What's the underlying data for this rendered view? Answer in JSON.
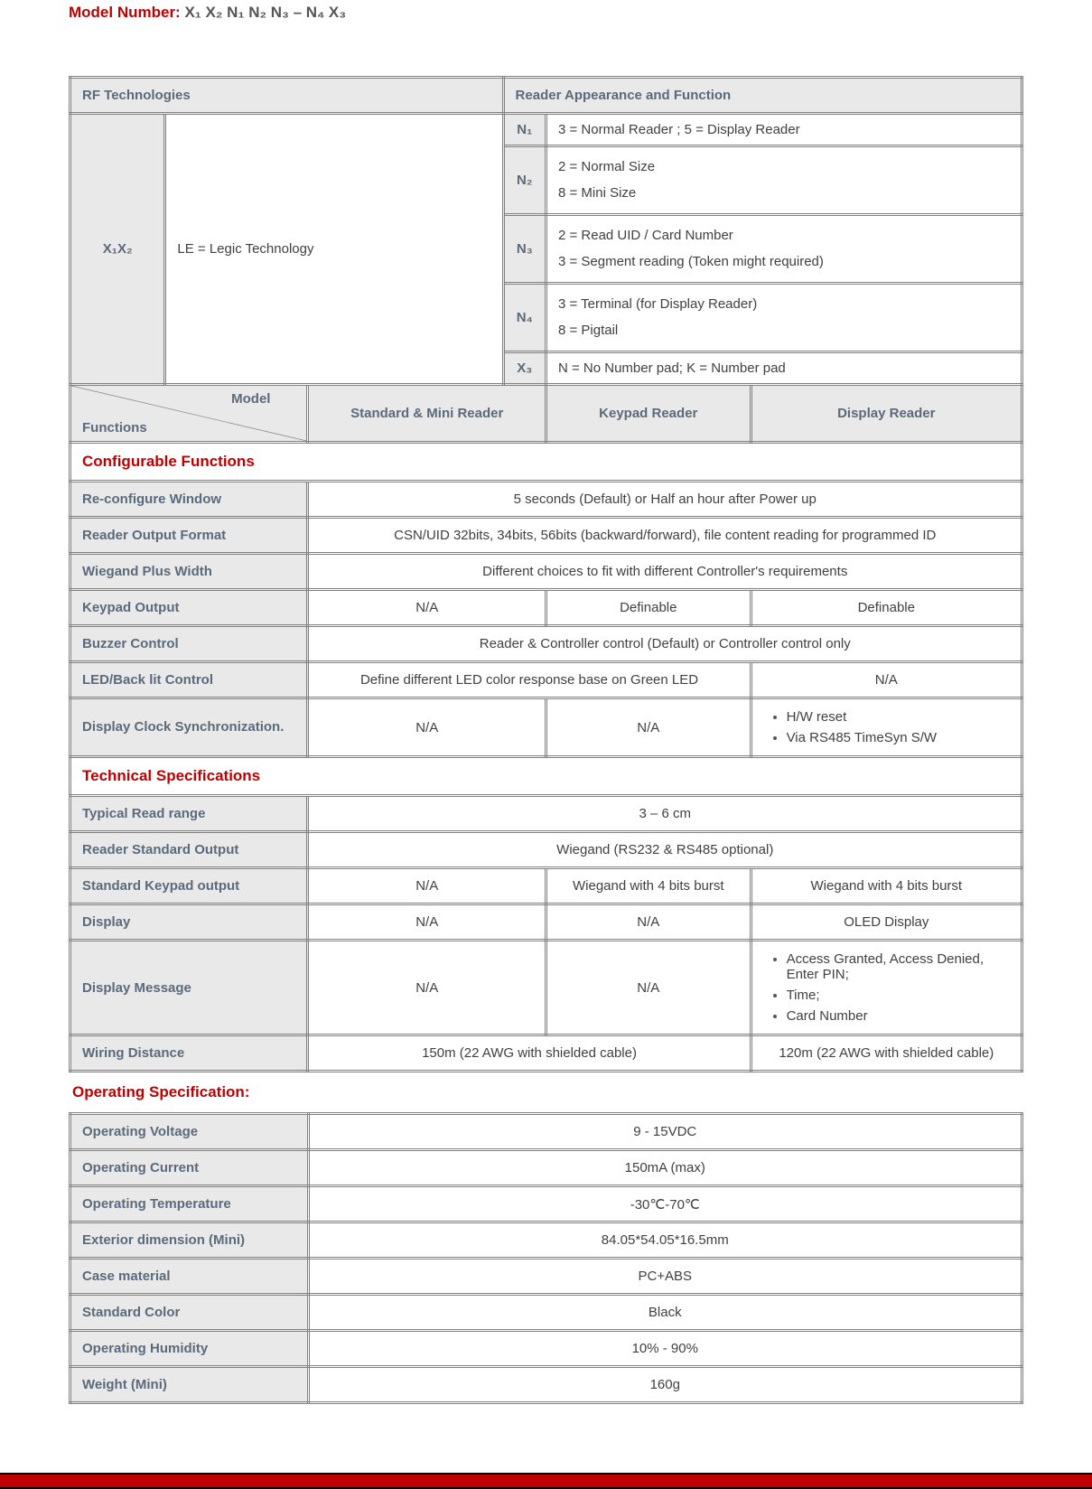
{
  "title_label": "Model Number:",
  "title_pattern": "X₁ X₂ N₁ N₂ N₃ – N₄ X₃",
  "headers": {
    "rf_tech": "RF Technologies",
    "reader_app": "Reader Appearance and Function"
  },
  "rf_key": "X₁X₂",
  "rf_val": "LE = Legic Technology",
  "appearance": [
    {
      "k": "N₁",
      "v": "3 = Normal Reader ; 5 = Display Reader"
    },
    {
      "k": "N₂",
      "v": "2 = Normal Size\n8 = Mini Size"
    },
    {
      "k": "N₃",
      "v": "2 = Read UID / Card Number\n3 = Segment reading (Token might required)"
    },
    {
      "k": "N₄",
      "v": "3 = Terminal (for Display Reader)\n8 = Pigtail"
    },
    {
      "k": "X₃",
      "v": "N = No Number pad; K = Number pad"
    }
  ],
  "model_hdr": {
    "diag_top": "Model",
    "diag_bot": "Functions",
    "c1": "Standard & Mini Reader",
    "c2": "Keypad Reader",
    "c3": "Display Reader"
  },
  "section_config": "Configurable Functions",
  "config_rows": [
    {
      "label": "Re-configure Window",
      "span": "5 seconds (Default) or Half an hour after Power up"
    },
    {
      "label": "Reader Output Format",
      "span": "CSN/UID 32bits, 34bits, 56bits (backward/forward), file content reading for programmed ID"
    },
    {
      "label": "Wiegand Plus Width",
      "span": "Different choices to fit with different Controller's requirements"
    },
    {
      "label": "Keypad Output",
      "c1": "N/A",
      "c2": "Definable",
      "c3": "Definable"
    },
    {
      "label": "Buzzer Control",
      "span": "Reader & Controller control (Default) or Controller control only"
    },
    {
      "label": "LED/Back lit Control",
      "c12": "Define different LED color response base on Green LED",
      "c3": "N/A"
    },
    {
      "label": "Display Clock Synchronization.",
      "c1": "N/A",
      "c2": "N/A",
      "bullets": [
        "H/W reset",
        "Via RS485 TimeSyn S/W"
      ]
    }
  ],
  "section_tech": "Technical Specifications",
  "tech_rows": [
    {
      "label": "Typical Read range",
      "span": "3 – 6 cm"
    },
    {
      "label": "Reader Standard Output",
      "span": "Wiegand (RS232 & RS485 optional)"
    },
    {
      "label": "Standard Keypad output",
      "c1": "N/A",
      "c2": "Wiegand with 4 bits burst",
      "c3": "Wiegand with 4 bits burst"
    },
    {
      "label": "Display",
      "c1": "N/A",
      "c2": "N/A",
      "c3": "OLED Display"
    },
    {
      "label": "Display Message",
      "c1": "N/A",
      "c2": "N/A",
      "bullets": [
        "Access Granted, Access Denied, Enter PIN;",
        "Time;",
        "Card Number"
      ]
    },
    {
      "label": "Wiring Distance",
      "c12": "150m (22 AWG with shielded cable)",
      "c3": "120m (22 AWG with shielded cable)"
    }
  ],
  "op_spec_heading": "Operating Specification:",
  "op_rows": [
    {
      "label": "Operating Voltage",
      "val": "9 - 15VDC"
    },
    {
      "label": "Operating Current",
      "val": "150mA (max)"
    },
    {
      "label": "Operating Temperature",
      "val": "-30℃-70℃"
    },
    {
      "label": "Exterior dimension (Mini)",
      "val": "84.05*54.05*16.5mm"
    },
    {
      "label": "Case material",
      "val": "PC+ABS"
    },
    {
      "label": "Standard Color",
      "val": "Black"
    },
    {
      "label": "Operating Humidity",
      "val": "10% - 90%"
    },
    {
      "label": "Weight (Mini)",
      "val": "160g"
    }
  ],
  "colors": {
    "accent": "#c00000",
    "header_bg": "#e9e9e9",
    "header_fg": "#5b6a7a",
    "border": "#808080",
    "text": "#404040"
  }
}
